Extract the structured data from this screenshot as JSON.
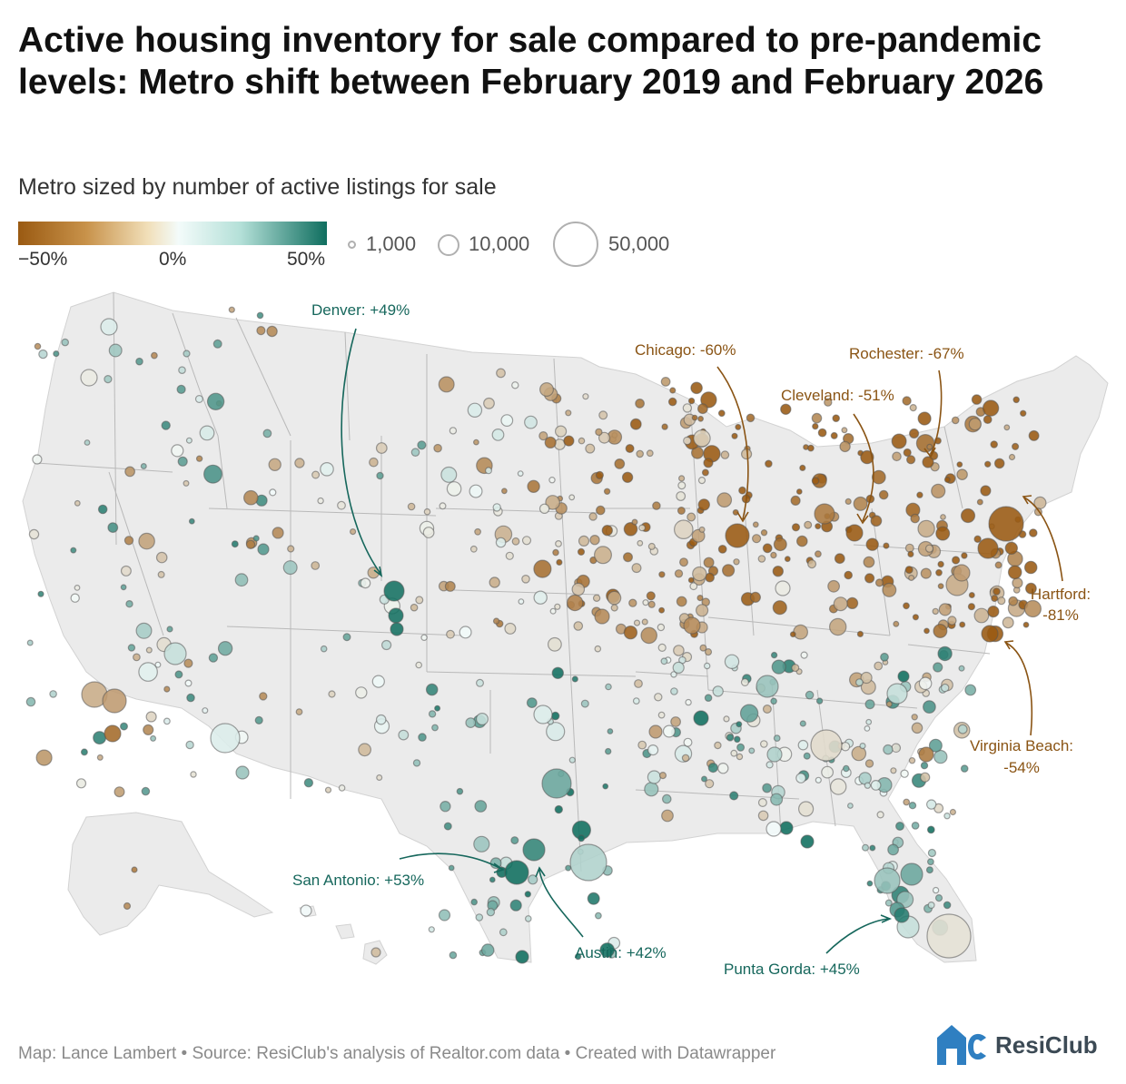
{
  "title": "Active housing inventory for sale compared to pre-pandemic levels: Metro shift between February 2019 and February 2026",
  "subtitle": "Metro sized by number of active listings for sale",
  "legend": {
    "color_labels": [
      "−50%",
      "0%",
      "50%"
    ],
    "size_labels": [
      "1,000",
      "10,000",
      "50,000"
    ]
  },
  "colors": {
    "negative": "#9a5a12",
    "neutral": "#f3fbfa",
    "positive": "#0f6e5f",
    "map_fill": "#ebebeb",
    "annotation_neg": "#8a5414",
    "annotation_pos": "#16675c"
  },
  "annotations": [
    {
      "id": "denver",
      "text": "Denver: +49%"
    },
    {
      "id": "chicago",
      "text": "Chicago: -60%"
    },
    {
      "id": "rochester",
      "text": "Rochester: -67%"
    },
    {
      "id": "cleveland",
      "text": "Cleveland: -51%"
    },
    {
      "id": "hartford",
      "line1": "Hartford:",
      "line2": "-81%"
    },
    {
      "id": "virginia-beach",
      "line1": "Virginia Beach:",
      "line2": "-54%"
    },
    {
      "id": "san-antonio",
      "text": "San Antonio: +53%"
    },
    {
      "id": "austin",
      "text": "Austin: +42%"
    },
    {
      "id": "punta-gorda",
      "text": "Punta Gorda: +45%"
    }
  ],
  "footer": "Map: Lance Lambert • Source: ResiClub's analysis of Realtor.com data • Created with Datawrapper",
  "brand": "ResiClub",
  "chart_data": {
    "type": "bubble-map",
    "metric": "change in active listings, Feb 2019 vs Feb 2026 (%)",
    "size_metric": "active listings for sale",
    "color_range": [
      -50,
      50
    ],
    "labeled_metros": [
      {
        "name": "Denver",
        "change_pct": 49
      },
      {
        "name": "Chicago",
        "change_pct": -60
      },
      {
        "name": "Rochester",
        "change_pct": -67
      },
      {
        "name": "Cleveland",
        "change_pct": -51
      },
      {
        "name": "Hartford",
        "change_pct": -81
      },
      {
        "name": "Virginia Beach",
        "change_pct": -54
      },
      {
        "name": "San Antonio",
        "change_pct": 53
      },
      {
        "name": "Austin",
        "change_pct": 42
      },
      {
        "name": "Punta Gorda",
        "change_pct": 45
      }
    ]
  }
}
